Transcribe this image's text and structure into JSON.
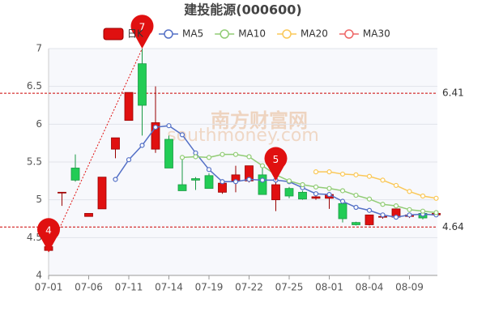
{
  "chart_data": {
    "type": "candlestick",
    "title": "建投能源(000600)",
    "categories": [
      "07-01",
      null,
      null,
      "07-06",
      null,
      null,
      "07-11",
      null,
      null,
      "07-14",
      null,
      null,
      "07-19",
      null,
      null,
      "07-22",
      null,
      null,
      "07-25",
      null,
      null,
      "08-01",
      null,
      null,
      "08-04",
      null,
      null,
      "08-09",
      null,
      null
    ],
    "candles": {
      "name": "日K",
      "up_color": "#e01010",
      "down_color": "#22cc55",
      "open": [
        4.33,
        5.1,
        5.42,
        4.78,
        4.88,
        5.67,
        6.05,
        6.8,
        5.67,
        5.8,
        5.2,
        5.28,
        5.32,
        5.1,
        5.25,
        5.25,
        5.33,
        5.0,
        5.15,
        5.1,
        5.02,
        5.02,
        4.95,
        4.7,
        4.67,
        4.77,
        4.77,
        4.78,
        4.82,
        4.8
      ],
      "close": [
        4.38,
        5.1,
        5.26,
        4.82,
        5.3,
        5.82,
        6.42,
        6.25,
        6.02,
        5.42,
        5.12,
        5.26,
        5.15,
        5.22,
        5.33,
        5.45,
        5.07,
        5.2,
        5.05,
        5.01,
        5.04,
        5.07,
        4.75,
        4.67,
        4.8,
        4.78,
        4.88,
        4.8,
        4.76,
        4.82
      ],
      "high": [
        4.4,
        5.1,
        5.6,
        4.82,
        5.3,
        5.82,
        6.42,
        7.0,
        6.5,
        5.85,
        5.55,
        5.3,
        5.35,
        5.23,
        5.45,
        5.45,
        5.45,
        5.25,
        5.17,
        5.12,
        5.05,
        5.1,
        4.96,
        4.71,
        4.8,
        4.8,
        4.88,
        4.82,
        4.84,
        4.85
      ],
      "low": [
        4.31,
        4.92,
        5.24,
        4.78,
        4.88,
        5.55,
        6.05,
        5.85,
        5.62,
        5.42,
        5.12,
        5.13,
        5.15,
        5.08,
        5.1,
        5.23,
        5.07,
        4.85,
        5.02,
        5.0,
        5.0,
        4.88,
        4.7,
        4.66,
        4.66,
        4.75,
        4.74,
        4.76,
        4.74,
        4.78
      ]
    },
    "series": [
      {
        "name": "MA5",
        "color": "#5470c6",
        "values": [
          null,
          null,
          null,
          null,
          null,
          5.27,
          5.53,
          5.72,
          5.96,
          5.98,
          5.86,
          5.62,
          5.4,
          5.24,
          5.24,
          5.27,
          5.26,
          5.26,
          5.24,
          5.16,
          5.08,
          5.07,
          4.98,
          4.9,
          4.86,
          4.8,
          4.77,
          4.8,
          4.81,
          4.8
        ]
      },
      {
        "name": "MA10",
        "color": "#91cc75",
        "values": [
          null,
          null,
          null,
          null,
          null,
          null,
          null,
          null,
          null,
          null,
          5.56,
          5.57,
          5.56,
          5.6,
          5.6,
          5.57,
          5.45,
          5.33,
          5.25,
          5.2,
          5.17,
          5.15,
          5.12,
          5.06,
          5.01,
          4.94,
          4.92,
          4.87,
          4.85,
          4.83
        ]
      },
      {
        "name": "MA20",
        "color": "#fac858",
        "values": [
          null,
          null,
          null,
          null,
          null,
          null,
          null,
          null,
          null,
          null,
          null,
          null,
          null,
          null,
          null,
          null,
          null,
          null,
          null,
          null,
          5.37,
          5.37,
          5.34,
          5.33,
          5.31,
          5.26,
          5.19,
          5.11,
          5.05,
          5.02
        ]
      },
      {
        "name": "MA30",
        "color": "#ee6666",
        "values": [
          null,
          null,
          null,
          null,
          null,
          null,
          null,
          null,
          null,
          null,
          null,
          null,
          null,
          null,
          null,
          null,
          null,
          null,
          null,
          null,
          null,
          null,
          null,
          null,
          null,
          null,
          null,
          null,
          null,
          null
        ]
      }
    ],
    "ylim": [
      4,
      7
    ],
    "yticks": [
      4,
      4.5,
      5,
      5.5,
      6,
      6.5,
      7
    ],
    "grid": true,
    "reference_lines": [
      {
        "value": 6.41,
        "label": "6.41"
      },
      {
        "value": 4.64,
        "label": "4.64"
      }
    ],
    "markers": [
      {
        "index": 7,
        "value": 7,
        "label": "7"
      },
      {
        "index": 0,
        "value": 4.31,
        "label": "4"
      },
      {
        "index": 17,
        "value": 5.25,
        "label": "5"
      }
    ],
    "watermark": "南方财富网",
    "watermark_sub": "southmoney.com"
  }
}
